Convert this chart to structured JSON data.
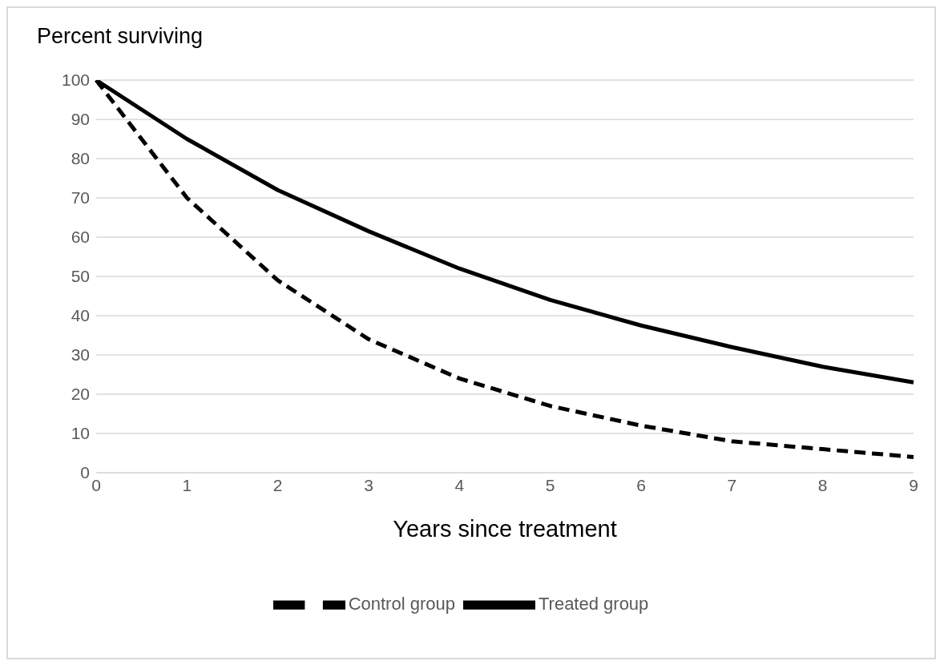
{
  "chart_data": {
    "type": "line",
    "ylabel": "Percent surviving",
    "xlabel": "Years since treatment",
    "categories": [
      "0",
      "1",
      "2",
      "3",
      "4",
      "5",
      "6",
      "7",
      "8",
      "9"
    ],
    "series": [
      {
        "name": "Control group",
        "color": "#000000",
        "line_style": "dashed",
        "values": [
          100,
          70,
          49,
          34,
          24,
          17,
          12,
          8,
          6,
          4
        ]
      },
      {
        "name": "Treated group",
        "color": "#000000",
        "line_style": "solid",
        "values": [
          100,
          85,
          72,
          61.5,
          52,
          44,
          37.5,
          32,
          27,
          23
        ]
      }
    ],
    "ylim": [
      0,
      100
    ],
    "yticks": [
      0,
      10,
      20,
      30,
      40,
      50,
      60,
      70,
      80,
      90,
      100
    ],
    "grid": "y",
    "legend": "bottom",
    "marker": "none"
  }
}
